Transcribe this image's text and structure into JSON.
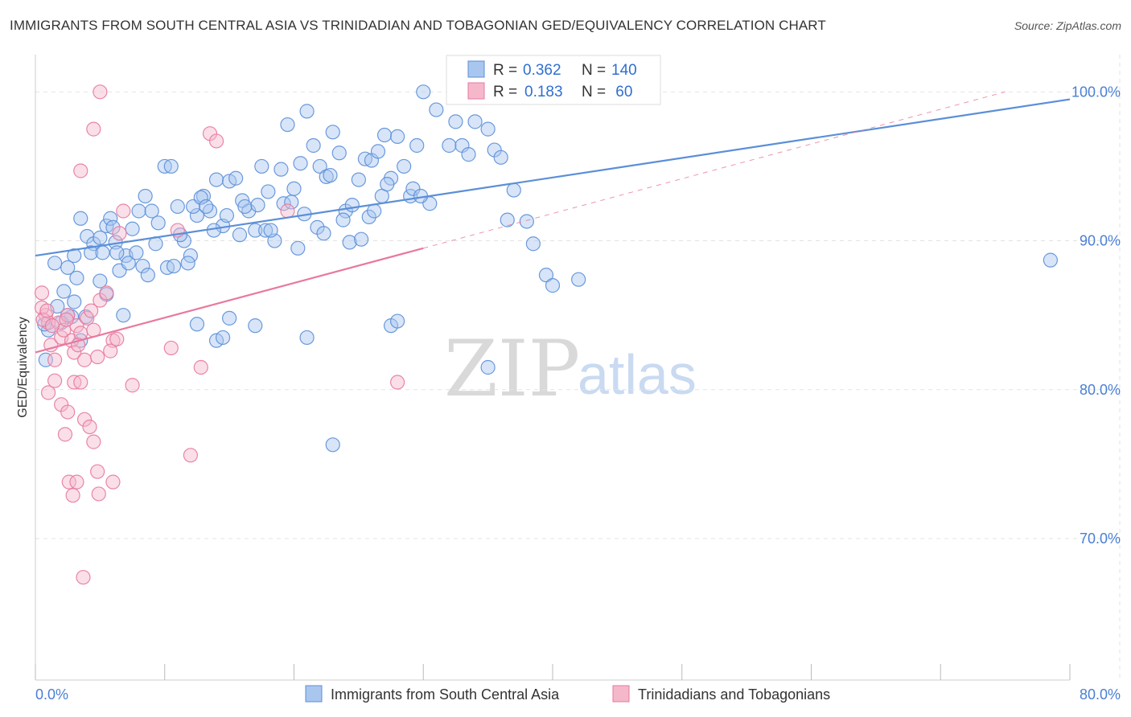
{
  "chart_data": {
    "type": "scatter",
    "title": "IMMIGRANTS FROM SOUTH CENTRAL ASIA VS TRINIDADIAN AND TOBAGONIAN GED/EQUIVALENCY CORRELATION CHART",
    "source": "Source: ZipAtlas.com",
    "xlabel": "",
    "ylabel": "GED/Equivalency",
    "xlim": [
      0,
      80
    ],
    "ylim": [
      60.5,
      102.5
    ],
    "x_tick_labels": [
      {
        "value": 0,
        "label": "0.0%"
      },
      {
        "value": 80,
        "label": "80.0%"
      }
    ],
    "y_tick_labels": [
      {
        "value": 100,
        "label": "100.0%"
      },
      {
        "value": 90,
        "label": "90.0%"
      },
      {
        "value": 80,
        "label": "80.0%"
      },
      {
        "value": 70,
        "label": "70.0%"
      }
    ],
    "legend": {
      "r_label": "R =",
      "n_label": "N =",
      "entries": [
        {
          "r": "0.362",
          "n": "140"
        },
        {
          "r": "0.183",
          "n": " 60"
        }
      ]
    },
    "watermark": {
      "zip": "ZIP",
      "atlas": "atlas"
    },
    "series": [
      {
        "name": "Immigrants from South Central Asia",
        "color": "#5b8fd8",
        "fill": "#a9c6ef",
        "trend": {
          "x0": 0,
          "y0": 89.0,
          "x1": 80,
          "y1": 99.5,
          "dashed_to": null
        },
        "points": [
          [
            1.5,
            88.5
          ],
          [
            2.5,
            88.2
          ],
          [
            3.0,
            89.0
          ],
          [
            3.5,
            91.5
          ],
          [
            4.0,
            90.3
          ],
          [
            3.2,
            87.5
          ],
          [
            2.2,
            86.6
          ],
          [
            1.7,
            85.6
          ],
          [
            2.8,
            84.9
          ],
          [
            3.5,
            83.3
          ],
          [
            4.5,
            89.8
          ],
          [
            5.0,
            90.2
          ],
          [
            5.5,
            91.0
          ],
          [
            5.8,
            91.5
          ],
          [
            6.2,
            89.9
          ],
          [
            6.5,
            88.0
          ],
          [
            7.0,
            89.0
          ],
          [
            7.5,
            90.8
          ],
          [
            8.0,
            92.0
          ],
          [
            8.5,
            93.0
          ],
          [
            9.0,
            92.0
          ],
          [
            9.5,
            91.2
          ],
          [
            10.0,
            95.0
          ],
          [
            10.5,
            95.0
          ],
          [
            11.0,
            92.3
          ],
          [
            11.5,
            90.0
          ],
          [
            12.0,
            89.0
          ],
          [
            12.5,
            91.7
          ],
          [
            13.0,
            93.0
          ],
          [
            13.5,
            92.0
          ],
          [
            14.0,
            94.1
          ],
          [
            14.5,
            91.0
          ],
          [
            15.0,
            94.0
          ],
          [
            15.5,
            94.2
          ],
          [
            16.0,
            92.7
          ],
          [
            16.5,
            92.0
          ],
          [
            17.0,
            90.7
          ],
          [
            17.5,
            95.0
          ],
          [
            18.0,
            93.3
          ],
          [
            18.5,
            90.0
          ],
          [
            19.0,
            94.8
          ],
          [
            19.5,
            97.8
          ],
          [
            20.0,
            93.5
          ],
          [
            20.5,
            95.2
          ],
          [
            21.0,
            98.7
          ],
          [
            21.5,
            96.4
          ],
          [
            22.0,
            95.0
          ],
          [
            22.5,
            94.3
          ],
          [
            23.0,
            97.3
          ],
          [
            23.5,
            95.9
          ],
          [
            24.0,
            92.0
          ],
          [
            24.5,
            92.4
          ],
          [
            25.0,
            94.1
          ],
          [
            25.5,
            95.5
          ],
          [
            26.0,
            95.4
          ],
          [
            26.5,
            96.0
          ],
          [
            27.0,
            97.1
          ],
          [
            27.5,
            94.2
          ],
          [
            28.0,
            97.0
          ],
          [
            28.5,
            95.0
          ],
          [
            29.0,
            93.0
          ],
          [
            29.5,
            96.4
          ],
          [
            30.0,
            100.0
          ],
          [
            30.5,
            92.5
          ],
          [
            31.0,
            98.8
          ],
          [
            32.0,
            96.4
          ],
          [
            32.5,
            98.0
          ],
          [
            33.0,
            96.4
          ],
          [
            33.5,
            95.8
          ],
          [
            34.0,
            98.0
          ],
          [
            35.0,
            97.5
          ],
          [
            35.5,
            96.1
          ],
          [
            36.0,
            95.6
          ],
          [
            37.0,
            93.4
          ],
          [
            38.0,
            91.3
          ],
          [
            38.5,
            89.8
          ],
          [
            39.5,
            87.7
          ],
          [
            40.0,
            87.0
          ],
          [
            42.0,
            87.4
          ],
          [
            5.0,
            87.3
          ],
          [
            5.5,
            86.4
          ],
          [
            3.0,
            85.9
          ],
          [
            2.5,
            85.0
          ],
          [
            2.0,
            84.5
          ],
          [
            1.0,
            84.0
          ],
          [
            0.8,
            82.0
          ],
          [
            0.7,
            84.4
          ],
          [
            6.8,
            85.0
          ],
          [
            12.5,
            84.4
          ],
          [
            14.0,
            83.3
          ],
          [
            14.5,
            83.5
          ],
          [
            15.0,
            84.8
          ],
          [
            17.0,
            84.3
          ],
          [
            21.0,
            83.5
          ],
          [
            23.0,
            76.3
          ],
          [
            27.5,
            84.3
          ],
          [
            28.0,
            84.6
          ],
          [
            35.0,
            81.5
          ],
          [
            3.9,
            84.9
          ],
          [
            4.3,
            89.2
          ],
          [
            5.2,
            89.2
          ],
          [
            6.0,
            90.9
          ],
          [
            6.3,
            89.2
          ],
          [
            7.2,
            88.5
          ],
          [
            7.8,
            89.2
          ],
          [
            8.3,
            88.3
          ],
          [
            8.7,
            87.7
          ],
          [
            9.3,
            89.8
          ],
          [
            10.2,
            88.2
          ],
          [
            10.7,
            88.3
          ],
          [
            11.2,
            90.4
          ],
          [
            11.8,
            88.5
          ],
          [
            12.2,
            92.3
          ],
          [
            12.8,
            92.9
          ],
          [
            13.2,
            92.3
          ],
          [
            13.8,
            90.7
          ],
          [
            14.8,
            91.7
          ],
          [
            15.8,
            90.4
          ],
          [
            16.2,
            92.3
          ],
          [
            17.2,
            92.4
          ],
          [
            17.8,
            90.7
          ],
          [
            18.2,
            90.7
          ],
          [
            19.2,
            92.5
          ],
          [
            19.8,
            92.6
          ],
          [
            20.3,
            89.5
          ],
          [
            20.8,
            91.8
          ],
          [
            21.8,
            90.9
          ],
          [
            22.3,
            90.5
          ],
          [
            22.8,
            94.4
          ],
          [
            23.8,
            91.4
          ],
          [
            24.3,
            89.9
          ],
          [
            25.2,
            90.1
          ],
          [
            25.8,
            91.6
          ],
          [
            26.2,
            92.0
          ],
          [
            26.8,
            93.0
          ],
          [
            27.2,
            93.8
          ],
          [
            29.2,
            93.5
          ],
          [
            29.8,
            93.0
          ],
          [
            36.5,
            91.4
          ],
          [
            78.5,
            88.7
          ]
        ]
      },
      {
        "name": "Trinidadians and Tobagonians",
        "color": "#e8799e",
        "fill": "#f5b8cb",
        "trend": {
          "x0": 0,
          "y0": 82.5,
          "x1": 30,
          "y1": 89.5,
          "dashed_to": [
            75,
            100
          ]
        },
        "points": [
          [
            0.5,
            86.5
          ],
          [
            0.8,
            85.0
          ],
          [
            1.0,
            84.5
          ],
          [
            1.2,
            83.0
          ],
          [
            1.5,
            82.0
          ],
          [
            1.8,
            84.5
          ],
          [
            2.0,
            83.5
          ],
          [
            2.2,
            84.0
          ],
          [
            2.5,
            85.0
          ],
          [
            2.8,
            83.3
          ],
          [
            3.0,
            82.5
          ],
          [
            3.2,
            84.3
          ],
          [
            3.5,
            83.8
          ],
          [
            3.8,
            82.0
          ],
          [
            4.0,
            84.8
          ],
          [
            4.3,
            85.3
          ],
          [
            4.5,
            84.0
          ],
          [
            4.8,
            82.2
          ],
          [
            5.0,
            86.0
          ],
          [
            5.5,
            86.5
          ],
          [
            6.0,
            83.3
          ],
          [
            6.5,
            90.5
          ],
          [
            6.8,
            92.0
          ],
          [
            1.0,
            79.8
          ],
          [
            1.5,
            80.6
          ],
          [
            2.0,
            79.0
          ],
          [
            2.5,
            78.5
          ],
          [
            3.0,
            80.5
          ],
          [
            3.5,
            80.5
          ],
          [
            3.8,
            78.0
          ],
          [
            4.2,
            77.5
          ],
          [
            4.5,
            76.5
          ],
          [
            4.8,
            74.5
          ],
          [
            2.3,
            77.0
          ],
          [
            2.6,
            73.8
          ],
          [
            2.9,
            72.9
          ],
          [
            3.2,
            73.8
          ],
          [
            4.9,
            73.0
          ],
          [
            6.0,
            73.8
          ],
          [
            7.5,
            80.3
          ],
          [
            10.5,
            82.8
          ],
          [
            11.0,
            90.7
          ],
          [
            12.0,
            75.6
          ],
          [
            12.8,
            81.5
          ],
          [
            13.5,
            97.2
          ],
          [
            14.0,
            96.7
          ],
          [
            19.5,
            92.0
          ],
          [
            28.0,
            80.5
          ],
          [
            4.5,
            97.5
          ],
          [
            5.0,
            100.0
          ],
          [
            3.5,
            94.7
          ],
          [
            3.7,
            67.4
          ],
          [
            0.5,
            85.5
          ],
          [
            0.6,
            84.7
          ],
          [
            0.9,
            85.3
          ],
          [
            1.3,
            84.3
          ],
          [
            2.4,
            84.7
          ],
          [
            3.3,
            83.0
          ],
          [
            5.8,
            82.6
          ],
          [
            6.3,
            83.4
          ]
        ]
      }
    ]
  }
}
